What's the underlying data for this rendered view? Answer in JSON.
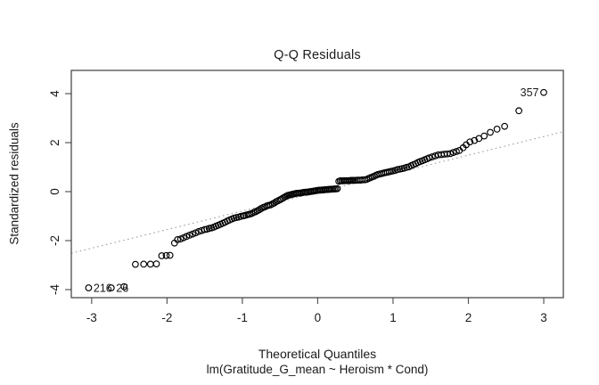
{
  "figure": {
    "background": "#ffffff",
    "box_color": "#3c3c3c",
    "tick_color": "#5a5a5a",
    "text_color": "#1a1a1a"
  },
  "chart_data": {
    "type": "scatter",
    "subtype": "qq-plot",
    "title": "Q-Q Residuals",
    "xlabel": "Theoretical Quantiles",
    "ylabel": "Standardized residuals",
    "sub": "lm(Gratitude_G_mean ~ Heroism * Cond)",
    "xlim": [
      -3.27,
      3.26
    ],
    "ylim": [
      -4.33,
      4.95
    ],
    "x_ticks": [
      -3,
      -2,
      -1,
      0,
      1,
      2,
      3
    ],
    "y_ticks": [
      -4,
      -2,
      0,
      2,
      4
    ],
    "grid": false,
    "legend": "none",
    "marker": {
      "shape": "open-circle",
      "radius": 3.3,
      "color": "#000000",
      "stroke_width": 1.15
    },
    "reference_line": {
      "slope": 0.76,
      "intercept": -0.03,
      "style": "dotted",
      "color": "#999999"
    },
    "labeled_points": [
      {
        "id": "357",
        "x": 3.0,
        "y": 4.05,
        "label_side": "left"
      },
      {
        "id": "216",
        "x": -3.04,
        "y": -3.93,
        "label_side": "right"
      },
      {
        "id": "26",
        "x": -2.74,
        "y": -3.93,
        "label_side": "right"
      }
    ],
    "points": [
      [
        -2.57,
        -3.88
      ],
      [
        -2.42,
        -2.97
      ],
      [
        -2.31,
        -2.96
      ],
      [
        -2.22,
        -2.96
      ],
      [
        -2.14,
        -2.95
      ],
      [
        -2.07,
        -2.62
      ],
      [
        -2.01,
        -2.61
      ],
      [
        -1.96,
        -2.6
      ],
      [
        -1.9,
        -2.1
      ],
      [
        -1.86,
        -1.96
      ],
      [
        -1.82,
        -1.93
      ],
      [
        -1.78,
        -1.88
      ],
      [
        -1.74,
        -1.83
      ],
      [
        -1.7,
        -1.78
      ],
      [
        -1.66,
        -1.73
      ],
      [
        -1.62,
        -1.68
      ],
      [
        -1.58,
        -1.63
      ],
      [
        -1.54,
        -1.59
      ],
      [
        -1.5,
        -1.55
      ],
      [
        -1.47,
        -1.53
      ],
      [
        -1.44,
        -1.5
      ],
      [
        -1.41,
        -1.48
      ],
      [
        -1.38,
        -1.45
      ],
      [
        -1.35,
        -1.41
      ],
      [
        -1.32,
        -1.37
      ],
      [
        -1.29,
        -1.33
      ],
      [
        -1.26,
        -1.29
      ],
      [
        -1.23,
        -1.25
      ],
      [
        -1.2,
        -1.2
      ],
      [
        -1.17,
        -1.16
      ],
      [
        -1.14,
        -1.12
      ],
      [
        -1.11,
        -1.08
      ],
      [
        -1.08,
        -1.06
      ],
      [
        -1.05,
        -1.04
      ],
      [
        -1.02,
        -1.01
      ],
      [
        -0.99,
        -0.99
      ],
      [
        -0.975,
        -0.98
      ],
      [
        -0.95,
        -0.96
      ],
      [
        -0.925,
        -0.94
      ],
      [
        -0.9,
        -0.92
      ],
      [
        -0.875,
        -0.89
      ],
      [
        -0.85,
        -0.85
      ],
      [
        -0.825,
        -0.82
      ],
      [
        -0.8,
        -0.78
      ],
      [
        -0.775,
        -0.74
      ],
      [
        -0.75,
        -0.69
      ],
      [
        -0.725,
        -0.65
      ],
      [
        -0.7,
        -0.62
      ],
      [
        -0.675,
        -0.58
      ],
      [
        -0.65,
        -0.56
      ],
      [
        -0.625,
        -0.54
      ],
      [
        -0.6,
        -0.5
      ],
      [
        -0.575,
        -0.46
      ],
      [
        -0.55,
        -0.41
      ],
      [
        -0.525,
        -0.37
      ],
      [
        -0.5,
        -0.33
      ],
      [
        -0.48,
        -0.3
      ],
      [
        -0.46,
        -0.26
      ],
      [
        -0.44,
        -0.23
      ],
      [
        -0.42,
        -0.19
      ],
      [
        -0.4,
        -0.16
      ],
      [
        -0.38,
        -0.14
      ],
      [
        -0.36,
        -0.13
      ],
      [
        -0.34,
        -0.11
      ],
      [
        -0.32,
        -0.1
      ],
      [
        -0.3,
        -0.08
      ],
      [
        -0.28,
        -0.07
      ],
      [
        -0.26,
        -0.06
      ],
      [
        -0.24,
        -0.06
      ],
      [
        -0.22,
        -0.05
      ],
      [
        -0.2,
        -0.04
      ],
      [
        -0.18,
        -0.03
      ],
      [
        -0.16,
        -0.02
      ],
      [
        -0.14,
        -0.02
      ],
      [
        -0.12,
        -0.01
      ],
      [
        -0.1,
        0.0
      ],
      [
        -0.08,
        0.01
      ],
      [
        -0.06,
        0.02
      ],
      [
        -0.04,
        0.03
      ],
      [
        -0.02,
        0.04
      ],
      [
        0.0,
        0.05
      ],
      [
        0.02,
        0.06
      ],
      [
        0.04,
        0.06
      ],
      [
        0.06,
        0.07
      ],
      [
        0.08,
        0.07
      ],
      [
        0.1,
        0.08
      ],
      [
        0.12,
        0.08
      ],
      [
        0.14,
        0.09
      ],
      [
        0.16,
        0.09
      ],
      [
        0.18,
        0.1
      ],
      [
        0.2,
        0.1
      ],
      [
        0.22,
        0.11
      ],
      [
        0.24,
        0.11
      ],
      [
        0.26,
        0.12
      ],
      [
        0.28,
        0.42
      ],
      [
        0.3,
        0.44
      ],
      [
        0.32,
        0.44
      ],
      [
        0.34,
        0.44
      ],
      [
        0.36,
        0.45
      ],
      [
        0.38,
        0.45
      ],
      [
        0.4,
        0.45
      ],
      [
        0.42,
        0.45
      ],
      [
        0.44,
        0.46
      ],
      [
        0.46,
        0.46
      ],
      [
        0.48,
        0.46
      ],
      [
        0.5,
        0.46
      ],
      [
        0.525,
        0.47
      ],
      [
        0.55,
        0.47
      ],
      [
        0.575,
        0.47
      ],
      [
        0.6,
        0.48
      ],
      [
        0.625,
        0.48
      ],
      [
        0.65,
        0.5
      ],
      [
        0.675,
        0.54
      ],
      [
        0.7,
        0.57
      ],
      [
        0.725,
        0.6
      ],
      [
        0.75,
        0.63
      ],
      [
        0.775,
        0.67
      ],
      [
        0.8,
        0.7
      ],
      [
        0.825,
        0.72
      ],
      [
        0.85,
        0.74
      ],
      [
        0.875,
        0.76
      ],
      [
        0.9,
        0.78
      ],
      [
        0.925,
        0.79
      ],
      [
        0.95,
        0.81
      ],
      [
        0.975,
        0.83
      ],
      [
        1.0,
        0.85
      ],
      [
        1.03,
        0.87
      ],
      [
        1.06,
        0.9
      ],
      [
        1.09,
        0.92
      ],
      [
        1.12,
        0.94
      ],
      [
        1.15,
        0.96
      ],
      [
        1.18,
        0.99
      ],
      [
        1.21,
        1.01
      ],
      [
        1.24,
        1.06
      ],
      [
        1.27,
        1.1
      ],
      [
        1.3,
        1.14
      ],
      [
        1.33,
        1.19
      ],
      [
        1.36,
        1.23
      ],
      [
        1.39,
        1.26
      ],
      [
        1.42,
        1.3
      ],
      [
        1.45,
        1.34
      ],
      [
        1.48,
        1.38
      ],
      [
        1.52,
        1.42
      ],
      [
        1.56,
        1.46
      ],
      [
        1.6,
        1.5
      ],
      [
        1.64,
        1.51
      ],
      [
        1.68,
        1.53
      ],
      [
        1.72,
        1.54
      ],
      [
        1.76,
        1.55
      ],
      [
        1.8,
        1.6
      ],
      [
        1.84,
        1.64
      ],
      [
        1.88,
        1.68
      ],
      [
        1.93,
        1.79
      ],
      [
        1.97,
        1.91
      ],
      [
        2.02,
        2.03
      ],
      [
        2.08,
        2.09
      ],
      [
        2.14,
        2.17
      ],
      [
        2.21,
        2.27
      ],
      [
        2.29,
        2.42
      ],
      [
        2.38,
        2.55
      ],
      [
        2.48,
        2.67
      ],
      [
        2.67,
        3.3
      ]
    ]
  }
}
